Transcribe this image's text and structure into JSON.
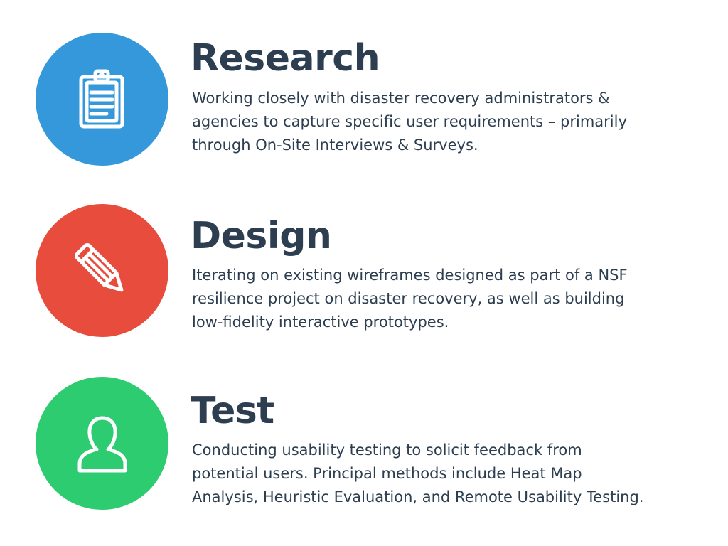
{
  "colors": {
    "research": "#3498db",
    "design": "#e74c3c",
    "test": "#2ecc71",
    "text": "#2c3e50"
  },
  "sections": [
    {
      "icon": "clipboard-icon",
      "title": "Research",
      "lines": [
        "Working closely with disaster recovery administrators &",
        "agencies to capture specific user requirements – primarily",
        "through On-Site Interviews & Surveys."
      ]
    },
    {
      "icon": "pencil-icon",
      "title": "Design",
      "lines": [
        "Iterating on existing wireframes designed as part of a NSF",
        "resilience project on disaster recovery, as well as building",
        "low-fidelity interactive prototypes."
      ]
    },
    {
      "icon": "user-icon",
      "title": "Test",
      "lines": [
        "Conducting usability testing to solicit feedback from",
        "potential users. Principal methods include Heat Map",
        "Analysis, Heuristic Evaluation, and Remote Usability Testing."
      ]
    }
  ]
}
